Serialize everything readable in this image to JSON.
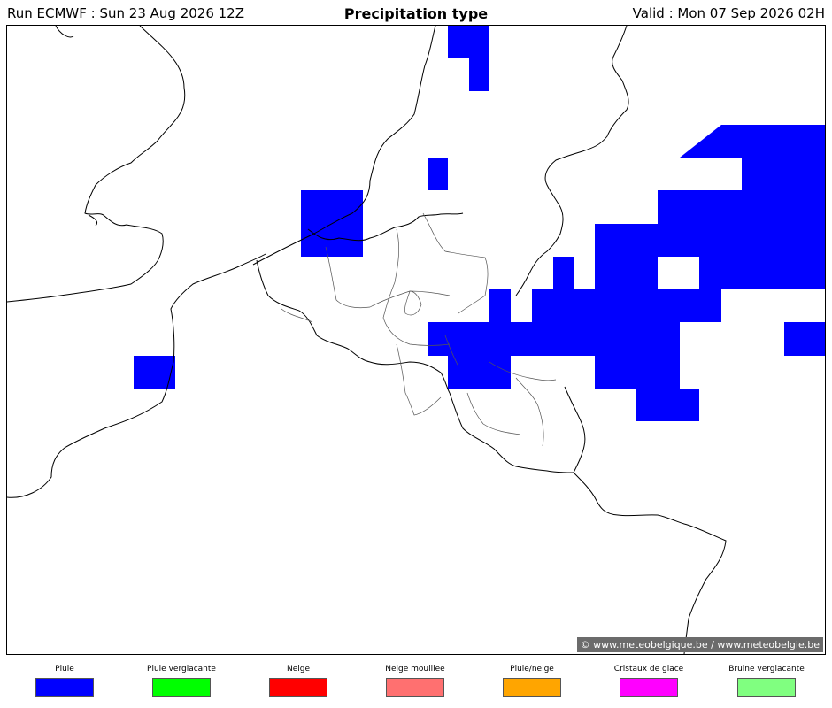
{
  "header": {
    "run": "Run ECMWF : Sun 23 Aug 2026 12Z",
    "title": "Precipitation type",
    "valid": "Valid : Mon 07 Sep 2026 02H"
  },
  "credit": "© www.meteobelgique.be / www.meteobelgie.be",
  "legend": [
    {
      "label": "Pluie",
      "color": "#0000ff"
    },
    {
      "label": "Pluie verglacante",
      "color": "#00ff00"
    },
    {
      "label": "Neige",
      "color": "#ff0000"
    },
    {
      "label": "Neige mouillee",
      "color": "#ff7070"
    },
    {
      "label": "Pluie/neige",
      "color": "#ffa500"
    },
    {
      "label": "Cristaux de glace",
      "color": "#ff00ff"
    },
    {
      "label": "Bruine verglacante",
      "color": "#80ff80"
    }
  ],
  "map": {
    "precipitation_type_shown": "Pluie",
    "precipitation_color": "#0000ff"
  }
}
